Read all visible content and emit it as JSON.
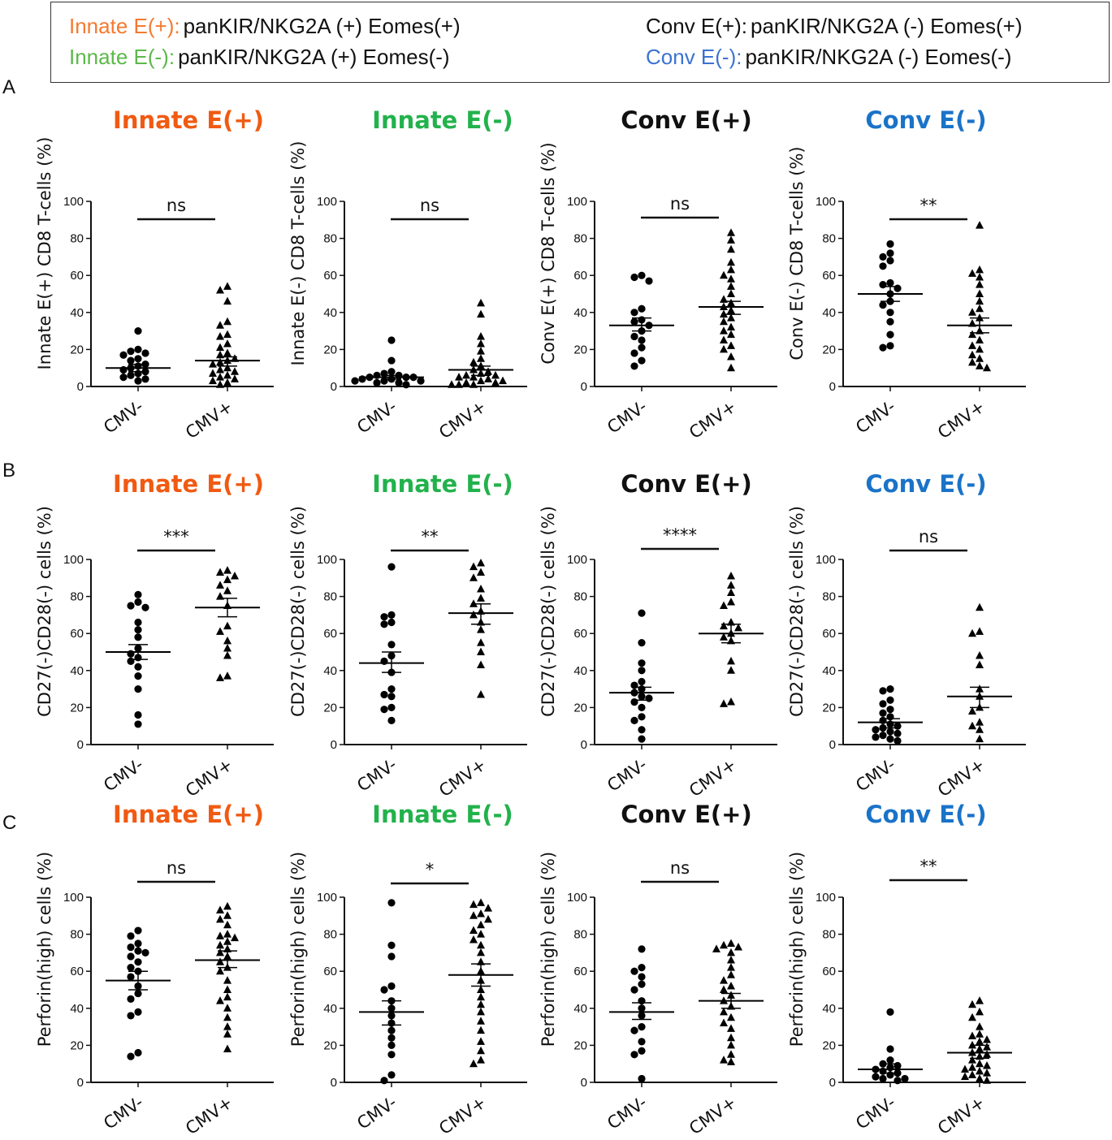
{
  "legend": {
    "colors": {
      "innate_pos": "#f47a2f",
      "innate_neg": "#5cb84a",
      "conv_pos": "#111111",
      "conv_neg": "#3b73d1"
    },
    "items": [
      {
        "key": "Innate E(+):",
        "desc": "panKIR/NKG2A (+) Eomes(+)"
      },
      {
        "key": "Innate E(-):",
        "desc": "panKIR/NKG2A (+) Eomes(-)"
      },
      {
        "key": "Conv E(+):",
        "desc": "panKIR/NKG2A (-) Eomes(+)"
      },
      {
        "key": "Conv E(-):",
        "desc": "panKIR/NKG2A (-) Eomes(-)"
      }
    ]
  },
  "panel_labels": [
    "A",
    "B",
    "C"
  ],
  "title_colors": [
    "#f05a12",
    "#22b24c",
    "#111111",
    "#1a73c8"
  ],
  "chart_data": [
    {
      "type": "scatter",
      "row": "A",
      "title": "Innate E(+)",
      "ylabel": "Innate E(+) CD8 T-cells (%)",
      "categories": [
        "CMV-",
        "CMV+"
      ],
      "ylim": [
        0,
        100
      ],
      "yticks": [
        0,
        20,
        40,
        60,
        80,
        100
      ],
      "significance": "ns",
      "groups": [
        {
          "name": "CMV-",
          "marker": "circle",
          "mean": 10,
          "sem_low": 8,
          "sem_high": 12,
          "values": [
            30,
            20,
            19,
            18,
            17,
            15,
            14,
            12,
            11,
            10,
            9,
            8,
            7,
            6,
            5,
            4,
            3
          ]
        },
        {
          "name": "CMV+",
          "marker": "triangle",
          "mean": 14,
          "sem_low": 11,
          "sem_high": 16,
          "values": [
            54,
            52,
            46,
            35,
            33,
            28,
            27,
            23,
            21,
            18,
            17,
            15,
            14,
            13,
            12,
            10,
            9,
            8,
            7,
            6,
            5,
            4,
            3,
            2,
            1
          ]
        }
      ]
    },
    {
      "type": "scatter",
      "row": "A",
      "title": "Innate E(-)",
      "ylabel": "Innate E(-) CD8 T-cells (%)",
      "categories": [
        "CMV-",
        "CMV+"
      ],
      "ylim": [
        0,
        100
      ],
      "yticks": [
        0,
        20,
        40,
        60,
        80,
        100
      ],
      "significance": "ns",
      "groups": [
        {
          "name": "CMV-",
          "marker": "circle",
          "mean": 5,
          "sem_low": 4,
          "sem_high": 6,
          "values": [
            25,
            14,
            8,
            7,
            6,
            6,
            5,
            5,
            5,
            4,
            4,
            3,
            3,
            3,
            2,
            2,
            1
          ]
        },
        {
          "name": "CMV+",
          "marker": "triangle",
          "mean": 9,
          "sem_low": 6,
          "sem_high": 11,
          "values": [
            45,
            39,
            27,
            23,
            19,
            15,
            13,
            11,
            9,
            8,
            7,
            6,
            6,
            5,
            5,
            4,
            3,
            3,
            2,
            2,
            1,
            1,
            1
          ]
        }
      ]
    },
    {
      "type": "scatter",
      "row": "A",
      "title": "Conv E(+)",
      "ylabel": "Conv E(+) CD8 T-cells (%)",
      "categories": [
        "CMV-",
        "CMV+"
      ],
      "ylim": [
        0,
        100
      ],
      "yticks": [
        0,
        20,
        40,
        60,
        80,
        100
      ],
      "significance": "ns",
      "groups": [
        {
          "name": "CMV-",
          "marker": "circle",
          "mean": 33,
          "sem_low": 30,
          "sem_high": 37,
          "values": [
            60,
            59,
            57,
            42,
            40,
            36,
            35,
            33,
            30,
            27,
            25,
            21,
            18,
            14,
            11
          ]
        },
        {
          "name": "CMV+",
          "marker": "triangle",
          "mean": 43,
          "sem_low": 39,
          "sem_high": 46,
          "values": [
            83,
            79,
            74,
            67,
            63,
            60,
            58,
            54,
            50,
            47,
            45,
            43,
            41,
            39,
            37,
            35,
            32,
            30,
            28,
            25,
            22,
            20,
            16,
            10
          ]
        }
      ]
    },
    {
      "type": "scatter",
      "row": "A",
      "title": "Conv E(-)",
      "ylabel": "Conv E(-) CD8 T-cells (%)",
      "categories": [
        "CMV-",
        "CMV+"
      ],
      "ylim": [
        0,
        100
      ],
      "yticks": [
        0,
        20,
        40,
        60,
        80,
        100
      ],
      "significance": "**",
      "groups": [
        {
          "name": "CMV-",
          "marker": "circle",
          "mean": 50,
          "sem_low": 46,
          "sem_high": 54,
          "values": [
            77,
            72,
            70,
            68,
            65,
            56,
            55,
            53,
            50,
            46,
            44,
            40,
            35,
            28,
            22,
            21
          ]
        },
        {
          "name": "CMV+",
          "marker": "triangle",
          "mean": 33,
          "sem_low": 29,
          "sem_high": 37,
          "values": [
            87,
            63,
            61,
            59,
            55,
            50,
            46,
            42,
            40,
            37,
            34,
            30,
            28,
            25,
            22,
            20,
            17,
            15,
            13,
            11,
            10
          ]
        }
      ]
    },
    {
      "type": "scatter",
      "row": "B",
      "title": "Innate E(+)",
      "ylabel": "CD27(-)CD28(-) cells (%)",
      "categories": [
        "CMV-",
        "CMV+"
      ],
      "ylim": [
        0,
        100
      ],
      "yticks": [
        0,
        20,
        40,
        60,
        80,
        100
      ],
      "significance": "***",
      "groups": [
        {
          "name": "CMV-",
          "marker": "circle",
          "mean": 50,
          "sem_low": 46,
          "sem_high": 54,
          "values": [
            81,
            77,
            75,
            74,
            66,
            62,
            58,
            52,
            49,
            47,
            45,
            42,
            37,
            30,
            16,
            11
          ]
        },
        {
          "name": "CMV+",
          "marker": "triangle",
          "mean": 74,
          "sem_low": 69,
          "sem_high": 79,
          "values": [
            94,
            93,
            91,
            89,
            86,
            83,
            80,
            75,
            64,
            61,
            56,
            52,
            48,
            37,
            36
          ]
        }
      ]
    },
    {
      "type": "scatter",
      "row": "B",
      "title": "Innate E(-)",
      "ylabel": "CD27(-)CD28(-) cells (%)",
      "categories": [
        "CMV-",
        "CMV+"
      ],
      "ylim": [
        0,
        100
      ],
      "yticks": [
        0,
        20,
        40,
        60,
        80,
        100
      ],
      "significance": "**",
      "groups": [
        {
          "name": "CMV-",
          "marker": "circle",
          "mean": 44,
          "sem_low": 39,
          "sem_high": 50,
          "values": [
            96,
            70,
            69,
            66,
            65,
            54,
            48,
            45,
            39,
            30,
            27,
            26,
            20,
            19,
            13
          ]
        },
        {
          "name": "CMV+",
          "marker": "triangle",
          "mean": 71,
          "sem_low": 65,
          "sem_high": 76,
          "values": [
            98,
            96,
            93,
            90,
            84,
            79,
            76,
            72,
            70,
            66,
            62,
            55,
            50,
            43,
            27
          ]
        }
      ]
    },
    {
      "type": "scatter",
      "row": "B",
      "title": "Conv E(+)",
      "ylabel": "CD27(-)CD28(-) cells (%)",
      "categories": [
        "CMV-",
        "CMV+"
      ],
      "ylim": [
        0,
        100
      ],
      "yticks": [
        0,
        20,
        40,
        60,
        80,
        100
      ],
      "significance": "****",
      "groups": [
        {
          "name": "CMV-",
          "marker": "circle",
          "mean": 28,
          "sem_low": 24,
          "sem_high": 31,
          "values": [
            71,
            55,
            44,
            40,
            34,
            32,
            30,
            28,
            26,
            25,
            23,
            20,
            15,
            13,
            8,
            3
          ]
        },
        {
          "name": "CMV+",
          "marker": "triangle",
          "mean": 60,
          "sem_low": 55,
          "sem_high": 65,
          "values": [
            91,
            86,
            82,
            77,
            75,
            66,
            64,
            63,
            60,
            58,
            56,
            45,
            40,
            23,
            22
          ]
        }
      ]
    },
    {
      "type": "scatter",
      "row": "B",
      "title": "Conv E(-)",
      "ylabel": "CD27(-)CD28(-) cells (%)",
      "categories": [
        "CMV-",
        "CMV+"
      ],
      "ylim": [
        0,
        100
      ],
      "yticks": [
        0,
        20,
        40,
        60,
        80,
        100
      ],
      "significance": "ns",
      "groups": [
        {
          "name": "CMV-",
          "marker": "circle",
          "mean": 12,
          "sem_low": 9,
          "sem_high": 14,
          "values": [
            30,
            29,
            24,
            22,
            19,
            17,
            15,
            13,
            11,
            10,
            9,
            8,
            7,
            6,
            5,
            4,
            3,
            2
          ]
        },
        {
          "name": "CMV+",
          "marker": "triangle",
          "mean": 26,
          "sem_low": 20,
          "sem_high": 31,
          "values": [
            74,
            61,
            60,
            48,
            43,
            30,
            26,
            20,
            18,
            12,
            10,
            8,
            3
          ]
        }
      ]
    },
    {
      "type": "scatter",
      "row": "C",
      "title": "Innate E(+)",
      "ylabel": "Perforin(high) cells (%)",
      "categories": [
        "CMV-",
        "CMV+"
      ],
      "ylim": [
        0,
        100
      ],
      "yticks": [
        0,
        20,
        40,
        60,
        80,
        100
      ],
      "significance": "ns",
      "groups": [
        {
          "name": "CMV-",
          "marker": "circle",
          "mean": 55,
          "sem_low": 50,
          "sem_high": 60,
          "values": [
            82,
            79,
            75,
            73,
            71,
            70,
            68,
            65,
            62,
            60,
            57,
            52,
            48,
            45,
            38,
            36,
            16,
            14
          ]
        },
        {
          "name": "CMV+",
          "marker": "triangle",
          "mean": 66,
          "sem_low": 62,
          "sem_high": 71,
          "values": [
            95,
            93,
            90,
            88,
            85,
            80,
            79,
            78,
            76,
            74,
            72,
            70,
            68,
            65,
            62,
            60,
            55,
            50,
            46,
            44,
            40,
            35,
            30,
            26,
            18
          ]
        }
      ]
    },
    {
      "type": "scatter",
      "row": "C",
      "title": "Innate E(-)",
      "ylabel": "Perforin(high) cells (%)",
      "categories": [
        "CMV-",
        "CMV+"
      ],
      "ylim": [
        0,
        100
      ],
      "yticks": [
        0,
        20,
        40,
        60,
        80,
        100
      ],
      "significance": "*",
      "groups": [
        {
          "name": "CMV-",
          "marker": "circle",
          "mean": 38,
          "sem_low": 31,
          "sem_high": 44,
          "values": [
            97,
            74,
            68,
            52,
            50,
            44,
            40,
            36,
            32,
            28,
            24,
            20,
            15,
            4,
            1
          ]
        },
        {
          "name": "CMV+",
          "marker": "triangle",
          "mean": 58,
          "sem_low": 52,
          "sem_high": 64,
          "values": [
            97,
            96,
            94,
            91,
            90,
            88,
            85,
            82,
            80,
            77,
            74,
            70,
            65,
            60,
            55,
            50,
            46,
            42,
            38,
            33,
            28,
            22,
            17,
            12,
            10
          ]
        }
      ]
    },
    {
      "type": "scatter",
      "row": "C",
      "title": "Conv E(+)",
      "ylabel": "Perforin(high) cells (%)",
      "categories": [
        "CMV-",
        "CMV+"
      ],
      "ylim": [
        0,
        100
      ],
      "yticks": [
        0,
        20,
        40,
        60,
        80,
        100
      ],
      "significance": "ns",
      "groups": [
        {
          "name": "CMV-",
          "marker": "circle",
          "mean": 38,
          "sem_low": 34,
          "sem_high": 43,
          "values": [
            72,
            62,
            60,
            57,
            53,
            50,
            44,
            40,
            36,
            30,
            28,
            22,
            17,
            15,
            2
          ]
        },
        {
          "name": "CMV+",
          "marker": "triangle",
          "mean": 44,
          "sem_low": 40,
          "sem_high": 48,
          "values": [
            75,
            74,
            73,
            72,
            70,
            66,
            62,
            58,
            55,
            52,
            50,
            47,
            44,
            41,
            38,
            35,
            32,
            29,
            24,
            20,
            15,
            12,
            11
          ]
        }
      ]
    },
    {
      "type": "scatter",
      "row": "C",
      "title": "Conv E(-)",
      "ylabel": "Perforin(high) cells (%)",
      "categories": [
        "CMV-",
        "CMV+"
      ],
      "ylim": [
        0,
        100
      ],
      "yticks": [
        0,
        20,
        40,
        60,
        80,
        100
      ],
      "significance": "**",
      "groups": [
        {
          "name": "CMV-",
          "marker": "circle",
          "mean": 7,
          "sem_low": 5,
          "sem_high": 10,
          "values": [
            38,
            18,
            12,
            10,
            9,
            8,
            7,
            6,
            5,
            4,
            3,
            2,
            2,
            1
          ]
        },
        {
          "name": "CMV+",
          "marker": "triangle",
          "mean": 16,
          "sem_low": 13,
          "sem_high": 20,
          "values": [
            44,
            42,
            38,
            35,
            30,
            26,
            25,
            23,
            22,
            20,
            19,
            18,
            16,
            15,
            14,
            12,
            10,
            9,
            8,
            7,
            6,
            5,
            4,
            3,
            2,
            1
          ]
        }
      ]
    }
  ]
}
